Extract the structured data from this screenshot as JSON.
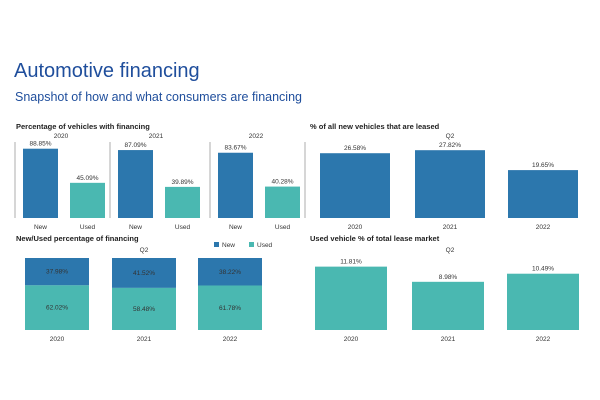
{
  "header": {
    "title": "Automotive financing",
    "subtitle": "Snapshot of how and what consumers are financing"
  },
  "colors": {
    "new": "#2c77ad",
    "used": "#4ab8b1",
    "title": "#1f4e9c"
  },
  "chart_data": [
    {
      "type": "bar",
      "title": "Percentage of vehicles with financing",
      "panels": [
        "2020",
        "2021",
        "2022"
      ],
      "categories": [
        "New",
        "Used"
      ],
      "values": [
        [
          88.85,
          45.09
        ],
        [
          87.09,
          39.89
        ],
        [
          83.67,
          40.28
        ]
      ],
      "labels": [
        [
          "88.85%",
          "45.09%"
        ],
        [
          "87.09%",
          "39.89%"
        ],
        [
          "83.67%",
          "40.28%"
        ]
      ],
      "ylim": [
        0,
        100
      ]
    },
    {
      "type": "bar",
      "title": "% of all new vehicles that are leased",
      "subtitle": "Q2",
      "categories": [
        "2020",
        "2021",
        "2022"
      ],
      "values": [
        26.58,
        27.82,
        19.65
      ],
      "labels": [
        "26.58%",
        "27.82%",
        "19.65%"
      ],
      "ylim": [
        0,
        32
      ]
    },
    {
      "type": "bar",
      "stacked": true,
      "title": "New/Used percentage of financing",
      "subtitle": "Q2",
      "categories": [
        "2020",
        "2021",
        "2022"
      ],
      "legend": [
        "New",
        "Used"
      ],
      "series": [
        {
          "name": "New",
          "values": [
            37.98,
            41.52,
            38.22
          ],
          "labels": [
            "37.98%",
            "41.52%",
            "38.22%"
          ]
        },
        {
          "name": "Used",
          "values": [
            62.02,
            58.48,
            61.78
          ],
          "labels": [
            "62.02%",
            "58.48%",
            "61.78%"
          ]
        }
      ],
      "ylim": [
        0,
        100
      ]
    },
    {
      "type": "bar",
      "title": "Used vehicle % of total lease market",
      "subtitle": "Q2",
      "categories": [
        "2020",
        "2021",
        "2022"
      ],
      "values": [
        11.81,
        8.98,
        10.49
      ],
      "labels": [
        "11.81%",
        "8.98%",
        "10.49%"
      ],
      "ylim": [
        0,
        12.3
      ]
    }
  ]
}
